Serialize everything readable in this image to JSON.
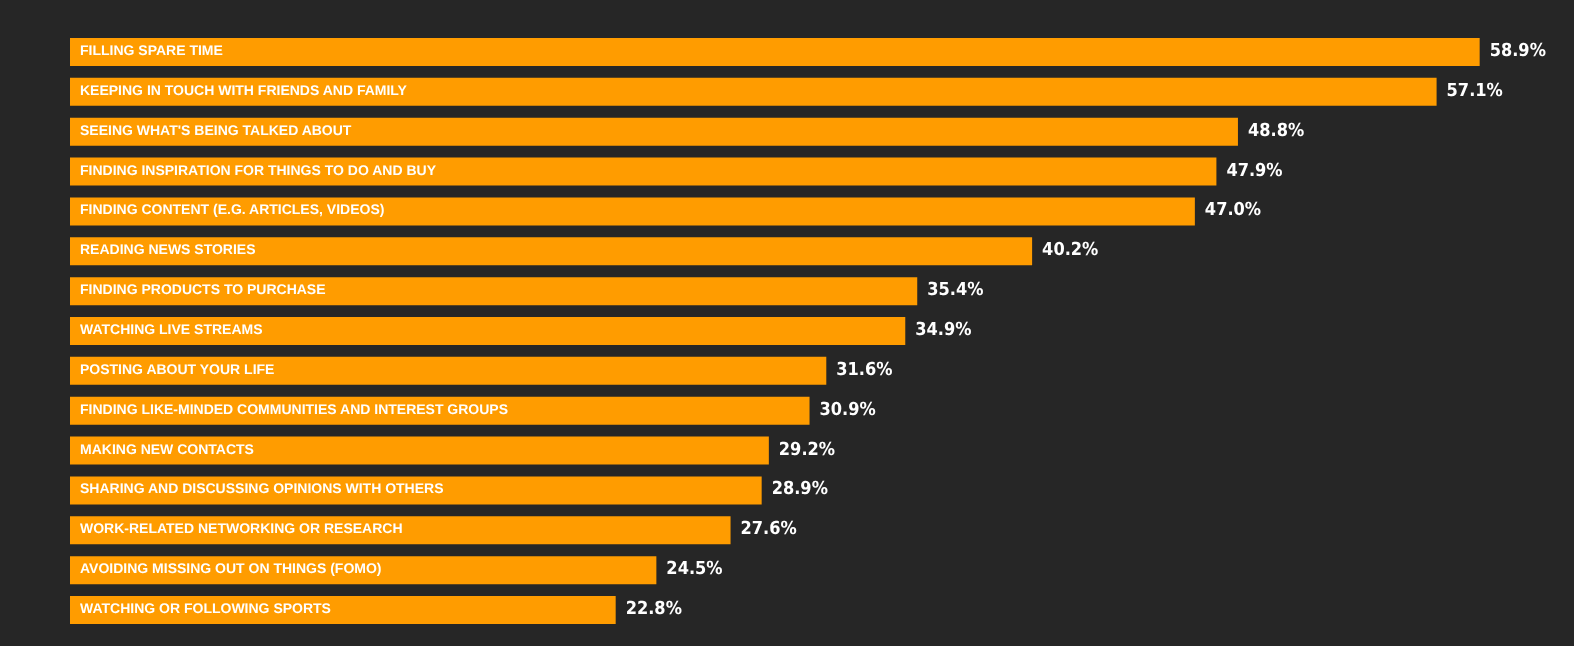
{
  "chart_data": {
    "type": "bar",
    "orientation": "horizontal",
    "categories": [
      "FILLING SPARE TIME",
      "KEEPING IN TOUCH WITH FRIENDS AND FAMILY",
      "SEEING WHAT'S BEING TALKED ABOUT",
      "FINDING INSPIRATION FOR THINGS TO DO AND BUY",
      "FINDING CONTENT (E.G. ARTICLES, VIDEOS)",
      "READING NEWS STORIES",
      "FINDING PRODUCTS TO PURCHASE",
      "WATCHING LIVE STREAMS",
      "POSTING ABOUT YOUR LIFE",
      "FINDING LIKE-MINDED COMMUNITIES AND INTEREST GROUPS",
      "MAKING NEW CONTACTS",
      "SHARING AND DISCUSSING OPINIONS WITH OTHERS",
      "WORK-RELATED NETWORKING OR RESEARCH",
      "AVOIDING MISSING OUT ON THINGS (FOMO)",
      "WATCHING OR FOLLOWING SPORTS"
    ],
    "values": [
      58.9,
      57.1,
      48.8,
      47.9,
      47.0,
      40.2,
      35.4,
      34.9,
      31.6,
      30.9,
      29.2,
      28.9,
      27.6,
      24.5,
      22.8
    ],
    "value_labels": [
      "58.9%",
      "57.1%",
      "48.8%",
      "47.9%",
      "47.0%",
      "40.2%",
      "35.4%",
      "34.9%",
      "31.6%",
      "30.9%",
      "29.2%",
      "28.9%",
      "27.6%",
      "24.5%",
      "22.8%"
    ],
    "color": "#ff9c00"
  }
}
